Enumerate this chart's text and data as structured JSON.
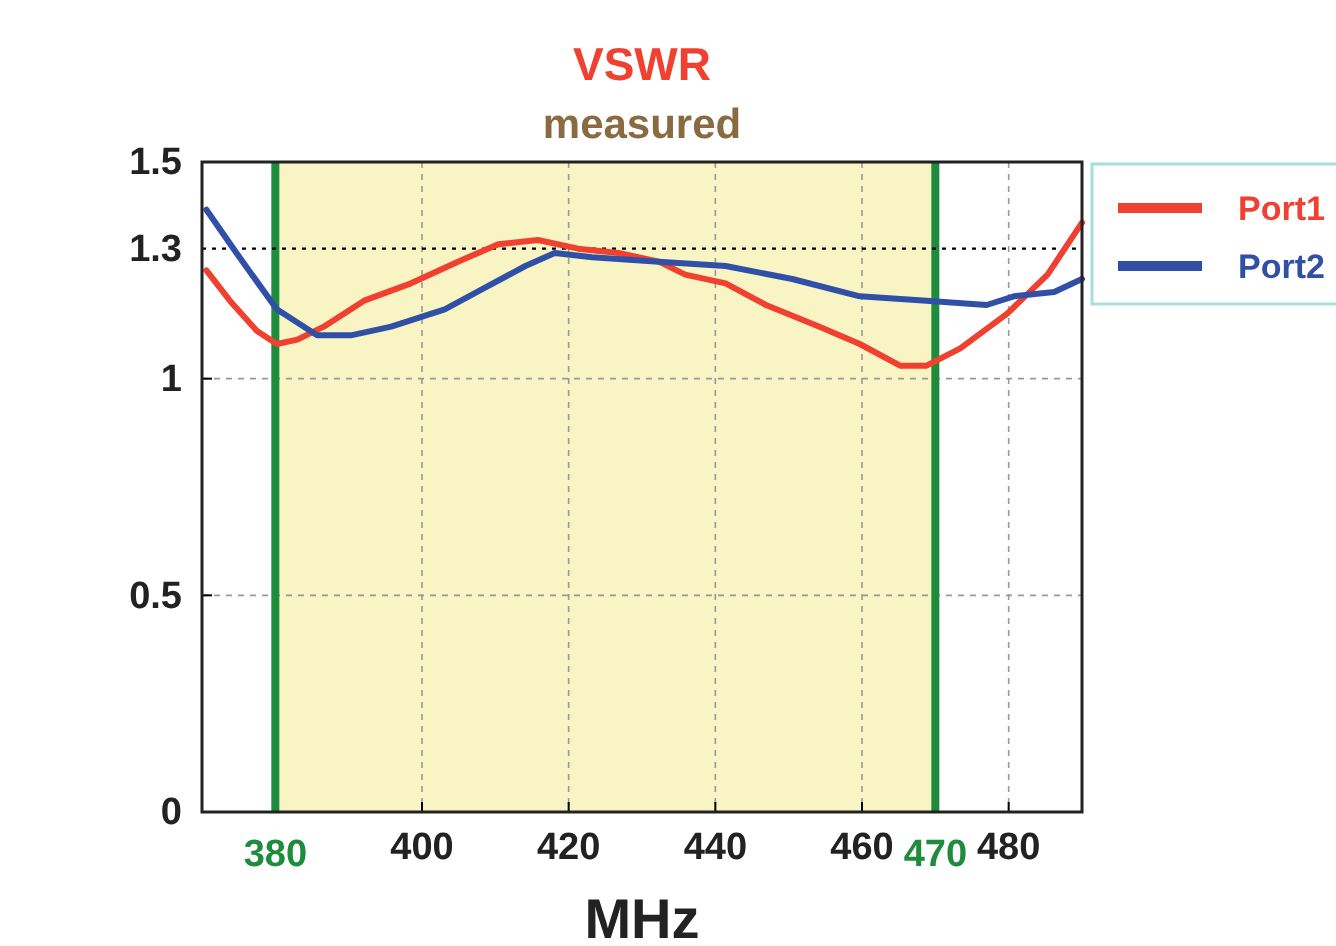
{
  "chart_data": {
    "type": "line",
    "title": "VSWR",
    "subtitle": "measured",
    "xlabel": "MHz",
    "xlim": [
      370,
      490
    ],
    "xticks": [
      400,
      420,
      440,
      460,
      480
    ],
    "ylim": [
      0,
      1.5
    ],
    "yticks": [
      0,
      0.5,
      1,
      1.5
    ],
    "grid": true,
    "legend": "top right",
    "line_style": "solid",
    "marker": "none",
    "bands": [
      {
        "axis": "x",
        "from": 380,
        "to": 470,
        "color": "#f8f4c4"
      }
    ],
    "ref_lines": [
      {
        "axis": "x",
        "value": 380,
        "label": "380",
        "color": "#1e8c3c",
        "line_style": "solid"
      },
      {
        "axis": "x",
        "value": 470,
        "label": "470",
        "color": "#1e8c3c",
        "line_style": "solid"
      },
      {
        "axis": "y",
        "value": 1.3,
        "label": "1.3",
        "color": "#000000",
        "line_style": "dotted"
      }
    ],
    "series": [
      {
        "name": "Port1",
        "color": "#f04030",
        "x": [
          370.6,
          373.8,
          377.5,
          380.2,
          383,
          386.6,
          392.1,
          398.5,
          404.9,
          410.4,
          415.8,
          421.3,
          426.8,
          432.3,
          435.9,
          441.4,
          446.9,
          454.2,
          459.7,
          465.2,
          468.8,
          473.4,
          479.8,
          485.3,
          490
        ],
        "values": [
          1.25,
          1.18,
          1.11,
          1.08,
          1.09,
          1.12,
          1.18,
          1.22,
          1.27,
          1.31,
          1.32,
          1.3,
          1.29,
          1.27,
          1.24,
          1.22,
          1.17,
          1.12,
          1.08,
          1.03,
          1.03,
          1.07,
          1.15,
          1.24,
          1.36
        ]
      },
      {
        "name": "Port2",
        "color": "#3050a8",
        "x": [
          370.6,
          374.7,
          380.2,
          385.7,
          390.3,
          395.8,
          403.1,
          408.6,
          414.1,
          418.1,
          423.2,
          432.3,
          441.4,
          450.5,
          459.7,
          468.8,
          477,
          480.7,
          486.2,
          490
        ],
        "values": [
          1.39,
          1.29,
          1.16,
          1.1,
          1.1,
          1.12,
          1.16,
          1.21,
          1.26,
          1.29,
          1.28,
          1.27,
          1.26,
          1.23,
          1.19,
          1.18,
          1.17,
          1.19,
          1.2,
          1.23
        ]
      }
    ]
  }
}
